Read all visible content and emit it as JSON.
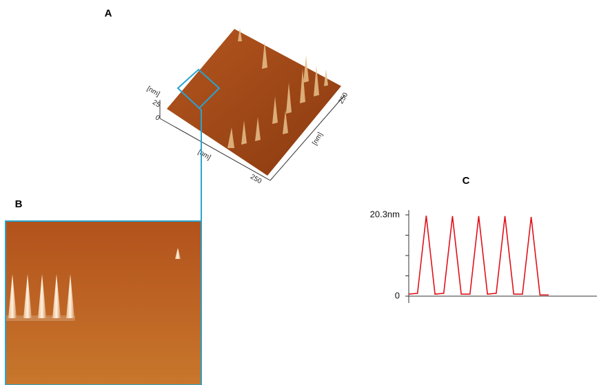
{
  "panels": {
    "a": "A",
    "b": "B",
    "c": "C"
  },
  "panel_a": {
    "z_unit": "[nm]",
    "z_top": "25",
    "z_bottom": "0",
    "x_unit": "[nm]",
    "x_end": "250",
    "y_unit": "[nm]",
    "y_end": "250"
  },
  "chart_data": {
    "type": "line",
    "series": [
      {
        "color": "#e0101a",
        "values": [
          0.5,
          0.7,
          20.1,
          0.5,
          0.7,
          20.0,
          0.5,
          0.5,
          20.0,
          0.5,
          0.7,
          20.0,
          0.5,
          0.5,
          19.8,
          0.3,
          0.3
        ]
      }
    ],
    "ylim": [
      0,
      20.3
    ],
    "yticks": [
      0,
      {
        "value": 5.075,
        "label": null
      },
      {
        "value": 10.15,
        "label": null
      },
      {
        "value": 15.225,
        "label": null
      },
      {
        "value": 20.3,
        "label": "20.3nm"
      }
    ]
  }
}
